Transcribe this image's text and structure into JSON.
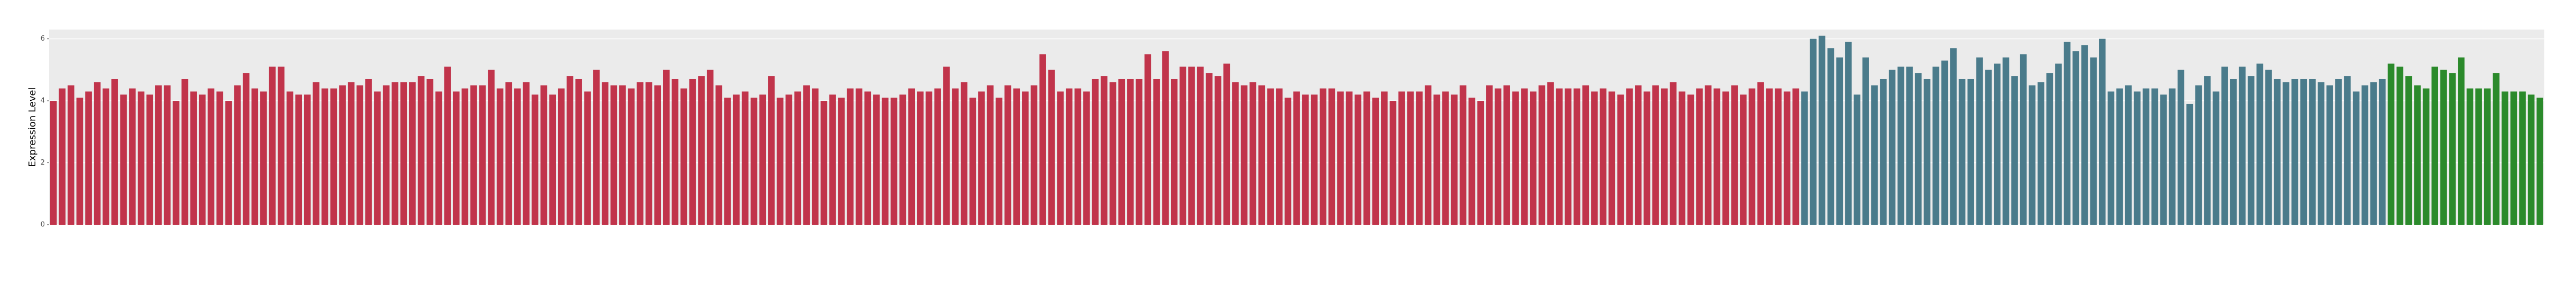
{
  "chart_data": {
    "type": "bar",
    "y_label": "Expression Level",
    "ylim": [
      0,
      6.3
    ],
    "yticks": [
      0,
      2,
      4,
      6
    ],
    "grid": true,
    "groups": [
      {
        "color": "#c1344b",
        "categories": [
          null,
          null,
          null,
          null,
          null,
          null,
          null,
          null,
          null,
          null,
          null,
          null,
          null,
          null,
          null,
          null,
          null,
          null,
          null,
          null,
          null,
          null,
          null,
          null,
          null,
          null,
          null,
          null,
          null,
          null,
          null,
          null,
          null,
          null,
          null,
          null,
          null,
          null,
          null,
          null,
          null,
          null,
          null,
          null,
          null,
          null,
          null,
          null,
          null,
          null,
          null,
          null,
          null,
          null,
          null,
          null,
          null,
          null,
          null,
          null,
          null,
          null,
          null,
          null,
          null,
          null,
          null,
          null,
          null,
          null,
          null,
          null,
          null,
          null,
          null,
          null,
          null,
          null,
          null,
          null,
          null,
          null,
          null,
          null,
          null,
          null,
          null,
          null,
          null,
          null,
          null,
          null,
          null,
          null,
          null,
          null,
          null,
          null,
          null,
          null,
          null,
          null,
          null,
          null,
          null,
          null,
          null,
          null,
          null,
          null,
          null,
          null,
          null,
          null,
          null,
          null,
          null,
          null,
          null,
          null,
          null,
          null,
          null,
          null,
          null,
          null,
          null,
          null,
          null,
          null,
          null,
          null,
          null,
          null,
          null,
          null,
          null,
          null,
          null,
          null,
          null,
          null,
          null,
          null,
          null,
          null,
          null,
          null,
          null,
          null,
          null,
          null,
          null,
          null,
          null,
          null,
          null,
          null,
          null,
          null,
          null,
          null,
          null,
          null,
          null,
          null,
          null,
          null,
          null,
          null,
          null,
          null,
          null,
          null,
          null,
          null,
          null,
          null,
          null,
          null,
          null,
          null,
          null,
          null,
          null,
          null,
          null,
          null,
          null,
          null,
          null,
          null,
          null,
          null,
          null,
          null,
          null,
          null,
          null,
          null
        ],
        "values": [
          4.0,
          4.4,
          4.5,
          4.1,
          4.3,
          4.6,
          4.4,
          4.7,
          4.2,
          4.4,
          4.3,
          4.2,
          4.5,
          4.5,
          4.0,
          4.7,
          4.3,
          4.2,
          4.4,
          4.3,
          4.0,
          4.5,
          4.9,
          4.4,
          4.3,
          5.1,
          5.1,
          4.3,
          4.2,
          4.2,
          4.6,
          4.4,
          4.4,
          4.5,
          4.6,
          4.5,
          4.7,
          4.3,
          4.5,
          4.6,
          4.6,
          4.6,
          4.8,
          4.7,
          4.3,
          5.1,
          4.3,
          4.4,
          4.5,
          4.5,
          5.0,
          4.4,
          4.6,
          4.4,
          4.6,
          4.2,
          4.5,
          4.2,
          4.4,
          4.8,
          4.7,
          4.3,
          5.0,
          4.6,
          4.5,
          4.5,
          4.4,
          4.6,
          4.6,
          4.5,
          5.0,
          4.7,
          4.4,
          4.7,
          4.8,
          5.0,
          4.5,
          4.1,
          4.2,
          4.3,
          4.1,
          4.2,
          4.8,
          4.1,
          4.2,
          4.3,
          4.5,
          4.4,
          4.0,
          4.2,
          4.1,
          4.4,
          4.4,
          4.3,
          4.2,
          4.1,
          4.1,
          4.2,
          4.4,
          4.3,
          4.3,
          4.4,
          5.1,
          4.4,
          4.6,
          4.1,
          4.3,
          4.5,
          4.1,
          4.5,
          4.4,
          4.3,
          4.5,
          5.5,
          5.0,
          4.3,
          4.4,
          4.4,
          4.3,
          4.7,
          4.8,
          4.6,
          4.7,
          4.7,
          4.7,
          5.5,
          4.7,
          5.6,
          4.7,
          5.1,
          5.1,
          5.1,
          4.9,
          4.8,
          5.2,
          4.6,
          4.5,
          4.6,
          4.5,
          4.4,
          4.4,
          4.1,
          4.3,
          4.2,
          4.2,
          4.4,
          4.4,
          4.3,
          4.3,
          4.2,
          4.3,
          4.1,
          4.3,
          4.0,
          4.3,
          4.3,
          4.3,
          4.5,
          4.2,
          4.3,
          4.2,
          4.5,
          4.1,
          4.0,
          4.5,
          4.4,
          4.5,
          4.3,
          4.4,
          4.3,
          4.5,
          4.6,
          4.4,
          4.4,
          4.4,
          4.5,
          4.3,
          4.4,
          4.3,
          4.2,
          4.4,
          4.5,
          4.3,
          4.5,
          4.4,
          4.6,
          4.3,
          4.2,
          4.4,
          4.5,
          4.4,
          4.3,
          4.5,
          4.2,
          4.4,
          4.6,
          4.4,
          4.4,
          4.3,
          4.4
        ]
      },
      {
        "color": "#4a7b8b",
        "categories": [
          null,
          null,
          null,
          null,
          null,
          null,
          null,
          null,
          null,
          null,
          null,
          null,
          null,
          null,
          null,
          null,
          null,
          null,
          null,
          null,
          null,
          null,
          null,
          null,
          null,
          null,
          null,
          null,
          null,
          null,
          null,
          null,
          null,
          null,
          null,
          null,
          null,
          null,
          null,
          null,
          null,
          null,
          null,
          null,
          null,
          null,
          null,
          null,
          null,
          null,
          null,
          null,
          null,
          null,
          null,
          null,
          null,
          null,
          null,
          null,
          null,
          null,
          null,
          null,
          null,
          null,
          null
        ],
        "values": [
          4.3,
          6.0,
          6.1,
          5.7,
          5.4,
          5.9,
          4.2,
          5.4,
          4.5,
          4.7,
          5.0,
          5.1,
          5.1,
          4.9,
          4.7,
          5.1,
          5.3,
          5.7,
          4.7,
          4.7,
          5.4,
          5.0,
          5.2,
          5.4,
          4.8,
          5.5,
          4.5,
          4.6,
          4.9,
          5.2,
          5.9,
          5.6,
          5.8,
          5.4,
          6.0,
          4.3,
          4.4,
          4.5,
          4.3,
          4.4,
          4.4,
          4.2,
          4.4,
          5.0,
          3.9,
          4.5,
          4.8,
          4.3,
          5.1,
          4.7,
          5.1,
          4.8,
          5.2,
          5.0,
          4.7,
          4.6,
          4.7,
          4.7,
          4.7,
          4.6,
          4.5,
          4.7,
          4.8,
          4.3,
          4.5,
          4.6,
          4.7
        ]
      },
      {
        "color": "#2b8a2b",
        "categories": [
          null,
          null,
          null,
          null,
          null,
          null,
          null,
          null,
          null,
          null,
          null,
          null,
          null,
          null,
          null,
          null,
          null,
          null
        ],
        "values": [
          5.2,
          5.1,
          4.8,
          4.5,
          4.4,
          5.1,
          5.0,
          4.9,
          5.4,
          4.4,
          4.4,
          4.4,
          4.9,
          4.3,
          4.3,
          4.3,
          4.2,
          4.1
        ]
      }
    ]
  }
}
